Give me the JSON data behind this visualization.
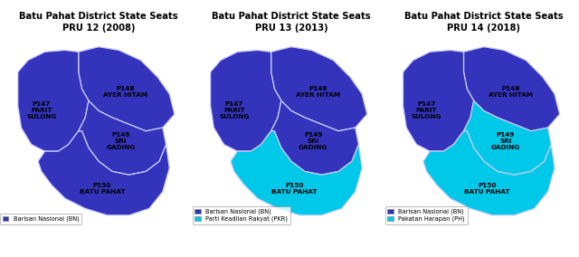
{
  "panels": [
    {
      "title": "Batu Pahat District State Seats\nPRU 12 (2008)",
      "legend": [
        {
          "label": "Barisan Nasional (BN)",
          "color": "#3333BB"
        }
      ],
      "colors": [
        "#3333BB",
        "#3333BB",
        "#3333BB",
        "#3333BB"
      ]
    },
    {
      "title": "Batu Pahat District State Seats\nPRU 13 (2013)",
      "legend": [
        {
          "label": "Barisan Nasional (BN)",
          "color": "#3333BB"
        },
        {
          "label": "Parti Keadilan Rakyat (PKR)",
          "color": "#00C8E8"
        }
      ],
      "colors": [
        "#3333BB",
        "#3333BB",
        "#3333BB",
        "#00C8E8"
      ]
    },
    {
      "title": "Batu Pahat District State Seats\nPRU 14 (2018)",
      "legend": [
        {
          "label": "Barisan Nasional (BN)",
          "color": "#3333BB"
        },
        {
          "label": "Pakatan Harapan (PH)",
          "color": "#00C8E8"
        }
      ],
      "colors": [
        "#3333BB",
        "#3333BB",
        "#00C8E8",
        "#00C8E8"
      ]
    }
  ],
  "outline_color": "#CCCCFF",
  "bg_color": "#FFFFFF",
  "label_fontsize": 5.2,
  "title_fontsize": 7.2
}
